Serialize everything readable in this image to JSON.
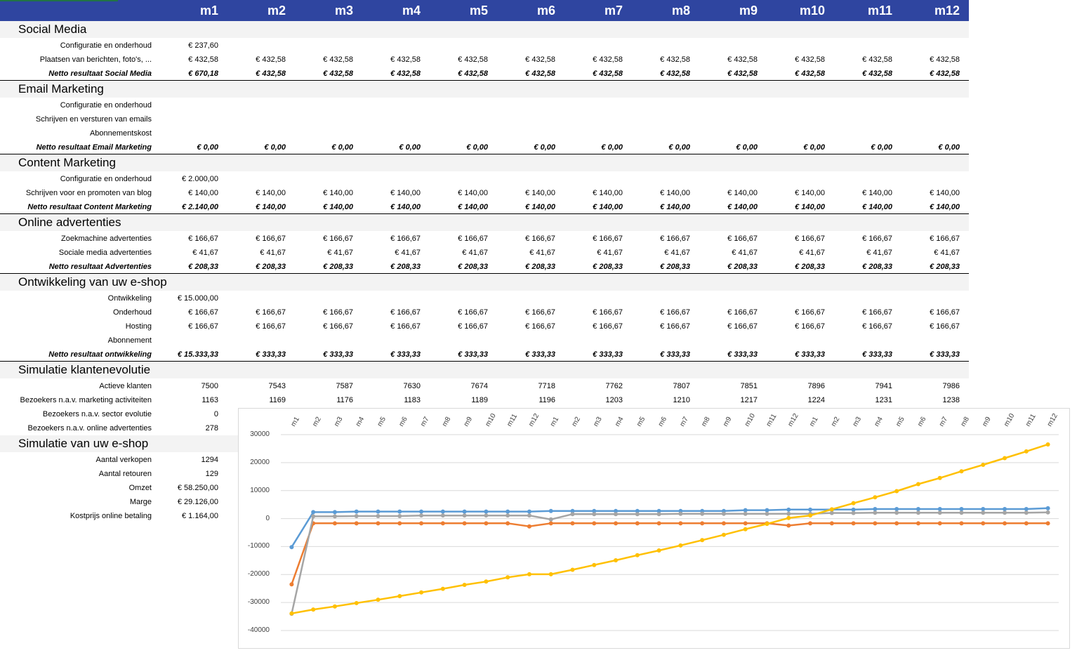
{
  "months": [
    "m1",
    "m2",
    "m3",
    "m4",
    "m5",
    "m6",
    "m7",
    "m8",
    "m9",
    "m10",
    "m11",
    "m12"
  ],
  "sections": [
    {
      "title": "Social Media",
      "rows": [
        {
          "label": "Configuratie en onderhoud",
          "values": [
            "€ 237,60",
            "",
            "",
            "",
            "",
            "",
            "",
            "",
            "",
            "",
            "",
            ""
          ]
        },
        {
          "label": "Plaatsen van berichten, foto's, ...",
          "values": [
            "€ 432,58",
            "€ 432,58",
            "€ 432,58",
            "€ 432,58",
            "€ 432,58",
            "€ 432,58",
            "€ 432,58",
            "€ 432,58",
            "€ 432,58",
            "€ 432,58",
            "€ 432,58",
            "€ 432,58"
          ]
        },
        {
          "label": "Netto resultaat Social Media",
          "total": true,
          "values": [
            "€ 670,18",
            "€ 432,58",
            "€ 432,58",
            "€ 432,58",
            "€ 432,58",
            "€ 432,58",
            "€ 432,58",
            "€ 432,58",
            "€ 432,58",
            "€ 432,58",
            "€ 432,58",
            "€ 432,58"
          ]
        }
      ]
    },
    {
      "title": "Email Marketing",
      "rows": [
        {
          "label": "Configuratie en onderhoud",
          "values": [
            "",
            "",
            "",
            "",
            "",
            "",
            "",
            "",
            "",
            "",
            "",
            ""
          ]
        },
        {
          "label": "Schrijven en versturen van emails",
          "values": [
            "",
            "",
            "",
            "",
            "",
            "",
            "",
            "",
            "",
            "",
            "",
            ""
          ]
        },
        {
          "label": "Abonnementskost",
          "values": [
            "",
            "",
            "",
            "",
            "",
            "",
            "",
            "",
            "",
            "",
            "",
            ""
          ]
        },
        {
          "label": "Netto resultaat Email Marketing",
          "total": true,
          "values": [
            "€ 0,00",
            "€ 0,00",
            "€ 0,00",
            "€ 0,00",
            "€ 0,00",
            "€ 0,00",
            "€ 0,00",
            "€ 0,00",
            "€ 0,00",
            "€ 0,00",
            "€ 0,00",
            "€ 0,00"
          ]
        }
      ]
    },
    {
      "title": "Content Marketing",
      "rows": [
        {
          "label": "Configuratie en onderhoud",
          "values": [
            "€ 2.000,00",
            "",
            "",
            "",
            "",
            "",
            "",
            "",
            "",
            "",
            "",
            ""
          ]
        },
        {
          "label": "Schrijven voor en promoten van blog",
          "values": [
            "€ 140,00",
            "€ 140,00",
            "€ 140,00",
            "€ 140,00",
            "€ 140,00",
            "€ 140,00",
            "€ 140,00",
            "€ 140,00",
            "€ 140,00",
            "€ 140,00",
            "€ 140,00",
            "€ 140,00"
          ]
        },
        {
          "label": "Netto resultaat Content Marketing",
          "total": true,
          "values": [
            "€ 2.140,00",
            "€ 140,00",
            "€ 140,00",
            "€ 140,00",
            "€ 140,00",
            "€ 140,00",
            "€ 140,00",
            "€ 140,00",
            "€ 140,00",
            "€ 140,00",
            "€ 140,00",
            "€ 140,00"
          ]
        }
      ]
    },
    {
      "title": "Online advertenties",
      "rows": [
        {
          "label": "Zoekmachine advertenties",
          "values": [
            "€ 166,67",
            "€ 166,67",
            "€ 166,67",
            "€ 166,67",
            "€ 166,67",
            "€ 166,67",
            "€ 166,67",
            "€ 166,67",
            "€ 166,67",
            "€ 166,67",
            "€ 166,67",
            "€ 166,67"
          ]
        },
        {
          "label": "Sociale media advertenties",
          "values": [
            "€ 41,67",
            "€ 41,67",
            "€ 41,67",
            "€ 41,67",
            "€ 41,67",
            "€ 41,67",
            "€ 41,67",
            "€ 41,67",
            "€ 41,67",
            "€ 41,67",
            "€ 41,67",
            "€ 41,67"
          ]
        },
        {
          "label": "Netto resultaat Advertenties",
          "total": true,
          "values": [
            "€ 208,33",
            "€ 208,33",
            "€ 208,33",
            "€ 208,33",
            "€ 208,33",
            "€ 208,33",
            "€ 208,33",
            "€ 208,33",
            "€ 208,33",
            "€ 208,33",
            "€ 208,33",
            "€ 208,33"
          ]
        }
      ]
    },
    {
      "title": "Ontwikkeling van uw e-shop",
      "rows": [
        {
          "label": "Ontwikkeling",
          "values": [
            "€ 15.000,00",
            "",
            "",
            "",
            "",
            "",
            "",
            "",
            "",
            "",
            "",
            ""
          ]
        },
        {
          "label": "Onderhoud",
          "values": [
            "€ 166,67",
            "€ 166,67",
            "€ 166,67",
            "€ 166,67",
            "€ 166,67",
            "€ 166,67",
            "€ 166,67",
            "€ 166,67",
            "€ 166,67",
            "€ 166,67",
            "€ 166,67",
            "€ 166,67"
          ]
        },
        {
          "label": "Hosting",
          "values": [
            "€ 166,67",
            "€ 166,67",
            "€ 166,67",
            "€ 166,67",
            "€ 166,67",
            "€ 166,67",
            "€ 166,67",
            "€ 166,67",
            "€ 166,67",
            "€ 166,67",
            "€ 166,67",
            "€ 166,67"
          ]
        },
        {
          "label": "Abonnement",
          "values": [
            "",
            "",
            "",
            "",
            "",
            "",
            "",
            "",
            "",
            "",
            "",
            ""
          ]
        },
        {
          "label": "Netto resultaat ontwikkeling",
          "total": true,
          "values": [
            "€ 15.333,33",
            "€ 333,33",
            "€ 333,33",
            "€ 333,33",
            "€ 333,33",
            "€ 333,33",
            "€ 333,33",
            "€ 333,33",
            "€ 333,33",
            "€ 333,33",
            "€ 333,33",
            "€ 333,33"
          ]
        }
      ]
    },
    {
      "title": "Simulatie klantenevolutie",
      "rows": [
        {
          "label": "Actieve klanten",
          "values": [
            "7500",
            "7543",
            "7587",
            "7630",
            "7674",
            "7718",
            "7762",
            "7807",
            "7851",
            "7896",
            "7941",
            "7986"
          ]
        },
        {
          "label": "Bezoekers n.a.v. marketing activiteiten",
          "values": [
            "1163",
            "1169",
            "1176",
            "1183",
            "1189",
            "1196",
            "1203",
            "1210",
            "1217",
            "1224",
            "1231",
            "1238"
          ]
        },
        {
          "label": "Bezoekers n.a.v. sector evolutie",
          "values": [
            "0",
            "",
            "",
            "",
            "",
            "",
            "",
            "",
            "",
            "",
            "",
            ""
          ]
        },
        {
          "label": "Bezoekers n.a.v. online advertenties",
          "values": [
            "278",
            "",
            "",
            "",
            "",
            "",
            "",
            "",
            "",
            "",
            "",
            ""
          ]
        }
      ]
    },
    {
      "title": "Simulatie van uw e-shop",
      "rows": [
        {
          "label": "Aantal verkopen",
          "values": [
            "1294"
          ]
        },
        {
          "label": "Aantal retouren",
          "values": [
            "129"
          ]
        },
        {
          "label": "Omzet",
          "values": [
            "€ 58.250,00"
          ]
        },
        {
          "label": "Marge",
          "values": [
            "€ 29.126,00"
          ]
        },
        {
          "label": "Kostprijs online betaling",
          "values": [
            "€ 1.164,00"
          ]
        }
      ]
    }
  ],
  "chart_data": {
    "type": "line",
    "categories": [
      "m1",
      "m2",
      "m3",
      "m4",
      "m5",
      "m6",
      "m7",
      "m8",
      "m9",
      "m10",
      "m11",
      "m12",
      "m1",
      "m2",
      "m3",
      "m4",
      "m5",
      "m6",
      "m7",
      "m8",
      "m9",
      "m10",
      "m11",
      "m12",
      "m1",
      "m2",
      "m3",
      "m4",
      "m5",
      "m6",
      "m7",
      "m8",
      "m9",
      "m10",
      "m11",
      "m12"
    ],
    "ylim": [
      -40000,
      30000
    ],
    "yticks": [
      30000,
      20000,
      10000,
      0,
      -10000,
      -20000,
      -30000,
      -40000
    ],
    "ytick_labels": [
      "30000",
      "20000",
      "10000",
      "0",
      "-10000",
      "-20000",
      "-30000",
      "-40000"
    ],
    "grid": true,
    "legend": "none",
    "series": [
      {
        "color": "#5b9bd5",
        "values": [
          -10200,
          2300,
          2300,
          2500,
          2500,
          2500,
          2500,
          2500,
          2500,
          2500,
          2500,
          2500,
          2700,
          2700,
          2700,
          2700,
          2700,
          2700,
          2700,
          2700,
          2700,
          3000,
          3000,
          3200,
          3200,
          3200,
          3200,
          3400,
          3400,
          3400,
          3400,
          3400,
          3400,
          3400,
          3400,
          3700
        ]
      },
      {
        "color": "#ed7d31",
        "values": [
          -23500,
          -1700,
          -1700,
          -1700,
          -1700,
          -1700,
          -1700,
          -1700,
          -1700,
          -1700,
          -1700,
          -2800,
          -1700,
          -1700,
          -1700,
          -1700,
          -1700,
          -1700,
          -1700,
          -1700,
          -1700,
          -1700,
          -1700,
          -2500,
          -1700,
          -1700,
          -1700,
          -1700,
          -1700,
          -1700,
          -1700,
          -1700,
          -1700,
          -1700,
          -1700,
          -1700
        ]
      },
      {
        "color": "#a5a5a5",
        "values": [
          -34000,
          800,
          800,
          900,
          900,
          900,
          1100,
          1100,
          1100,
          1100,
          1100,
          1100,
          -300,
          1600,
          1600,
          1600,
          1600,
          1600,
          1700,
          1700,
          1700,
          1700,
          1700,
          1700,
          1700,
          2000,
          2000,
          2100,
          2100,
          2100,
          2100,
          2100,
          2100,
          2100,
          2100,
          2200
        ]
      },
      {
        "color": "#ffc000",
        "values": [
          -33900,
          -32500,
          -31400,
          -30200,
          -29000,
          -27700,
          -26400,
          -25100,
          -23700,
          -22500,
          -21000,
          -19900,
          -19900,
          -18300,
          -16600,
          -14900,
          -13100,
          -11400,
          -9600,
          -7700,
          -5800,
          -3800,
          -1900,
          200,
          1100,
          3300,
          5500,
          7600,
          9800,
          12300,
          14500,
          16900,
          19200,
          21600,
          24000,
          26500
        ]
      }
    ]
  }
}
